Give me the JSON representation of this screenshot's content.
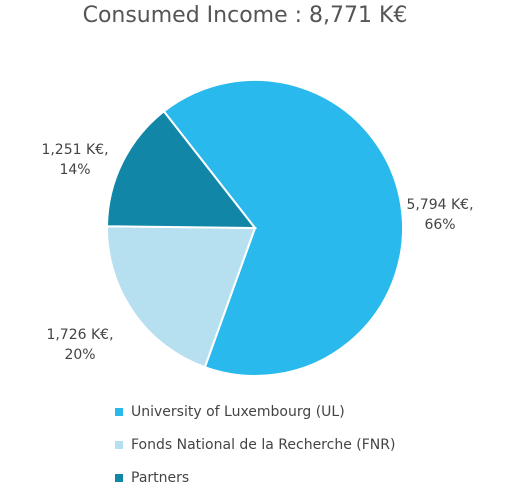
{
  "chart_data": {
    "type": "pie",
    "title": "Consumed Income : 8,771 K€",
    "categories": [
      "University of Luxembourg (UL)",
      "Fonds National de la Recherche (FNR)",
      "Partners"
    ],
    "values": [
      5794,
      1726,
      1251
    ],
    "value_labels": [
      [
        "5,794 K€,",
        "66%"
      ],
      [
        "1,726 K€,",
        "20%"
      ],
      [
        "1,251 K€,",
        "14%"
      ]
    ],
    "colors": [
      "#29b9ec",
      "#b6e0f0",
      "#1186a6"
    ]
  }
}
